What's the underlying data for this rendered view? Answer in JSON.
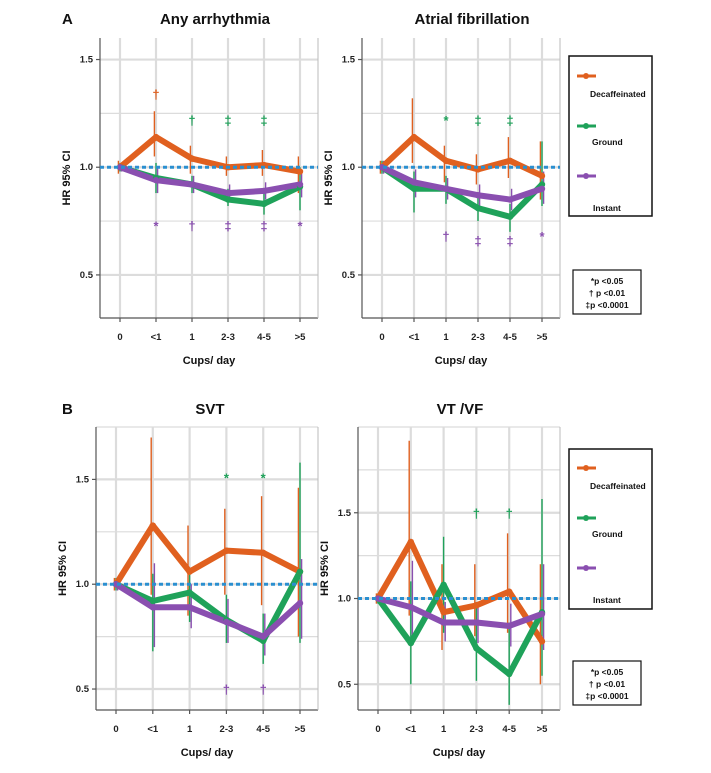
{
  "colors": {
    "decaffeinated": "#e0601f",
    "ground": "#1fa25a",
    "instant": "#8a4fb0",
    "reference_line": "#2a8fd0",
    "grid": "#dcdcdc",
    "axis": "#555555"
  },
  "panel_letters": [
    "A",
    "B"
  ],
  "pvalue_box": [
    "*p <0.05",
    "† p <0.01",
    "‡p <0.0001"
  ],
  "legend": [
    "Decaffeinated",
    "Ground",
    "Instant"
  ],
  "chart_data": [
    {
      "type": "line",
      "title": "Any arrhythmia",
      "xlabel": "Cups/ day",
      "ylabel": "HR 95% CI",
      "categories": [
        "0",
        "<1",
        "1",
        "2-3",
        "4-5",
        ">5"
      ],
      "ylim": [
        0.3,
        1.6
      ],
      "yticks": [
        "0.5",
        "1.0",
        "1.5"
      ],
      "reference_y": 1.0,
      "series": [
        {
          "name": "Decaffeinated",
          "values": [
            1.0,
            1.14,
            1.04,
            1.0,
            1.01,
            0.98
          ],
          "lower": [
            0.97,
            1.05,
            0.97,
            0.96,
            0.96,
            0.88
          ],
          "upper": [
            1.03,
            1.26,
            1.1,
            1.05,
            1.08,
            1.05
          ]
        },
        {
          "name": "Ground",
          "values": [
            1.0,
            0.95,
            0.92,
            0.85,
            0.83,
            0.91
          ],
          "lower": [
            0.98,
            0.88,
            0.88,
            0.82,
            0.78,
            0.8
          ],
          "upper": [
            1.02,
            1.02,
            0.96,
            0.9,
            0.88,
            1.0
          ]
        },
        {
          "name": "Instant",
          "values": [
            1.0,
            0.94,
            0.92,
            0.88,
            0.89,
            0.92
          ],
          "lower": [
            0.98,
            0.88,
            0.88,
            0.84,
            0.85,
            0.86
          ],
          "upper": [
            1.02,
            1.0,
            0.96,
            0.92,
            0.93,
            0.98
          ]
        }
      ],
      "annotations": [
        {
          "category": "<1",
          "y": 1.34,
          "text": "†",
          "series": "Decaffeinated"
        },
        {
          "category": "1",
          "y": 1.22,
          "text": "†",
          "series": "Ground"
        },
        {
          "category": "2-3",
          "y": 1.22,
          "text": "‡",
          "series": "Ground"
        },
        {
          "category": "4-5",
          "y": 1.22,
          "text": "‡",
          "series": "Ground"
        },
        {
          "category": "<1",
          "y": 0.73,
          "text": "*",
          "series": "Instant"
        },
        {
          "category": "1",
          "y": 0.73,
          "text": "†",
          "series": "Instant"
        },
        {
          "category": "2-3",
          "y": 0.73,
          "text": "‡",
          "series": "Instant"
        },
        {
          "category": "4-5",
          "y": 0.73,
          "text": "‡",
          "series": "Instant"
        },
        {
          "category": ">5",
          "y": 0.73,
          "text": "*",
          "series": "Instant"
        }
      ]
    },
    {
      "type": "line",
      "title": "Atrial fibrillation",
      "xlabel": "Cups/ day",
      "ylabel": "HR 95% CI",
      "categories": [
        "0",
        "<1",
        "1",
        "2-3",
        "4-5",
        ">5"
      ],
      "ylim": [
        0.3,
        1.6
      ],
      "yticks": [
        "0.5",
        "1.0",
        "1.5"
      ],
      "reference_y": 1.0,
      "series": [
        {
          "name": "Decaffeinated",
          "values": [
            1.0,
            1.14,
            1.03,
            0.99,
            1.03,
            0.96
          ],
          "lower": [
            0.97,
            1.02,
            0.93,
            0.92,
            0.95,
            0.85
          ],
          "upper": [
            1.03,
            1.32,
            1.1,
            1.06,
            1.14,
            1.12
          ]
        },
        {
          "name": "Ground",
          "values": [
            1.0,
            0.9,
            0.9,
            0.81,
            0.77,
            0.92
          ],
          "lower": [
            0.97,
            0.79,
            0.83,
            0.75,
            0.7,
            0.82
          ],
          "upper": [
            1.03,
            0.98,
            0.96,
            0.86,
            0.83,
            1.12
          ]
        },
        {
          "name": "Instant",
          "values": [
            1.0,
            0.93,
            0.9,
            0.87,
            0.85,
            0.9
          ],
          "lower": [
            0.97,
            0.86,
            0.85,
            0.82,
            0.8,
            0.83
          ],
          "upper": [
            1.03,
            0.99,
            0.95,
            0.92,
            0.9,
            0.98
          ]
        }
      ],
      "annotations": [
        {
          "category": "1",
          "y": 1.22,
          "text": "*",
          "series": "Ground"
        },
        {
          "category": "2-3",
          "y": 1.22,
          "text": "‡",
          "series": "Ground"
        },
        {
          "category": "4-5",
          "y": 1.22,
          "text": "‡",
          "series": "Ground"
        },
        {
          "category": "1",
          "y": 0.68,
          "text": "†",
          "series": "Instant"
        },
        {
          "category": "2-3",
          "y": 0.66,
          "text": "‡",
          "series": "Instant"
        },
        {
          "category": "4-5",
          "y": 0.66,
          "text": "‡",
          "series": "Instant"
        },
        {
          "category": ">5",
          "y": 0.68,
          "text": "*",
          "series": "Instant"
        }
      ]
    },
    {
      "type": "line",
      "title": "SVT",
      "xlabel": "Cups/ day",
      "ylabel": "HR 95% CI",
      "categories": [
        "0",
        "<1",
        "1",
        "2-3",
        "4-5",
        ">5"
      ],
      "ylim": [
        0.4,
        1.75
      ],
      "yticks": [
        "0.5",
        "1.0",
        "1.5"
      ],
      "reference_y": 1.0,
      "series": [
        {
          "name": "Decaffeinated",
          "values": [
            1.0,
            1.28,
            1.06,
            1.16,
            1.15,
            1.06
          ],
          "lower": [
            0.97,
            0.95,
            0.85,
            0.95,
            0.9,
            0.75
          ],
          "upper": [
            1.03,
            1.7,
            1.28,
            1.36,
            1.42,
            1.46
          ]
        },
        {
          "name": "Ground",
          "values": [
            1.0,
            0.92,
            0.96,
            0.83,
            0.73,
            1.06
          ],
          "lower": [
            0.97,
            0.68,
            0.82,
            0.72,
            0.62,
            0.72
          ],
          "upper": [
            1.03,
            1.05,
            1.08,
            0.95,
            0.86,
            1.58
          ]
        },
        {
          "name": "Instant",
          "values": [
            1.0,
            0.89,
            0.89,
            0.82,
            0.75,
            0.91
          ],
          "lower": [
            0.97,
            0.7,
            0.79,
            0.72,
            0.66,
            0.74
          ],
          "upper": [
            1.03,
            1.1,
            1.0,
            0.93,
            0.86,
            1.12
          ]
        }
      ],
      "annotations": [
        {
          "category": "2-3",
          "y": 1.51,
          "text": "*",
          "series": "Ground"
        },
        {
          "category": "4-5",
          "y": 1.51,
          "text": "*",
          "series": "Ground"
        },
        {
          "category": "2-3",
          "y": 0.5,
          "text": "†",
          "series": "Instant"
        },
        {
          "category": "4-5",
          "y": 0.5,
          "text": "†",
          "series": "Instant"
        }
      ]
    },
    {
      "type": "line",
      "title": "VT /VF",
      "xlabel": "Cups/ day",
      "ylabel": "HR 95% CI",
      "categories": [
        "0",
        "<1",
        "1",
        "2-3",
        "4-5",
        ">5"
      ],
      "ylim": [
        0.35,
        2.0
      ],
      "yticks": [
        "0.5",
        "1.0",
        "1.5"
      ],
      "reference_y": 1.0,
      "series": [
        {
          "name": "Decaffeinated",
          "values": [
            1.0,
            1.33,
            0.92,
            0.96,
            1.04,
            0.75
          ],
          "lower": [
            0.97,
            0.9,
            0.7,
            0.78,
            0.8,
            0.5
          ],
          "upper": [
            1.03,
            1.92,
            1.2,
            1.2,
            1.38,
            1.2
          ]
        },
        {
          "name": "Ground",
          "values": [
            1.0,
            0.74,
            1.08,
            0.71,
            0.56,
            0.92
          ],
          "lower": [
            0.97,
            0.5,
            0.8,
            0.52,
            0.38,
            0.55
          ],
          "upper": [
            1.03,
            1.1,
            1.36,
            0.98,
            0.86,
            1.58
          ]
        },
        {
          "name": "Instant",
          "values": [
            1.0,
            0.95,
            0.86,
            0.86,
            0.84,
            0.91
          ],
          "lower": [
            0.97,
            0.74,
            0.75,
            0.74,
            0.72,
            0.7
          ],
          "upper": [
            1.03,
            1.22,
            0.98,
            0.98,
            0.97,
            1.2
          ]
        }
      ],
      "annotations": [
        {
          "category": "2-3",
          "y": 1.5,
          "text": "†",
          "series": "Ground"
        },
        {
          "category": "4-5",
          "y": 1.5,
          "text": "†",
          "series": "Ground"
        }
      ]
    }
  ]
}
